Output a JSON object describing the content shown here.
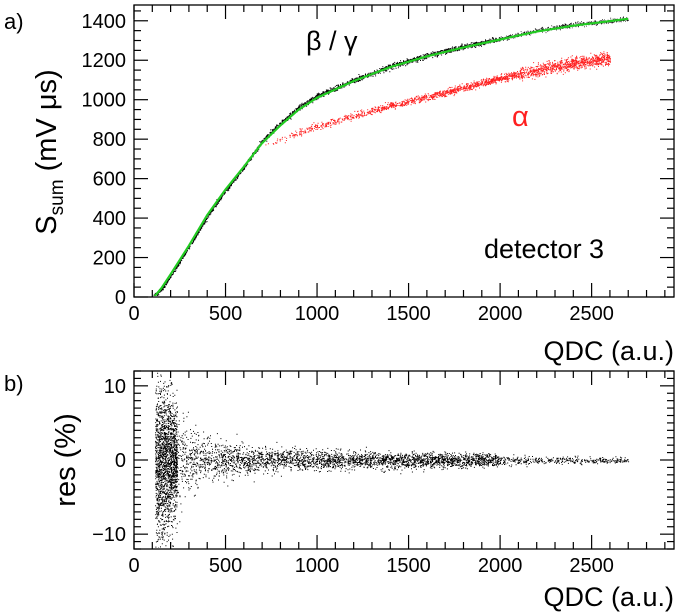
{
  "chart_data": [
    {
      "panel_label": "a)",
      "type": "scatter",
      "xlabel": "QDC (a.u.)",
      "ylabel_main": "S",
      "ylabel_sub": "sum",
      "ylabel_rest": " (mV μs)",
      "xlim": [
        0,
        2950
      ],
      "ylim": [
        0,
        1480
      ],
      "xticks": [
        0,
        500,
        1000,
        1500,
        2000,
        2500
      ],
      "yticks": [
        0,
        200,
        400,
        600,
        800,
        1000,
        1200,
        1400
      ],
      "annotations": {
        "detector": "detector 3"
      },
      "grid": false,
      "series": [
        {
          "name": "β / γ",
          "color": "#000000",
          "kind": "scatter-band",
          "x": [
            100,
            150,
            200,
            300,
            400,
            500,
            600,
            700,
            800,
            900,
            1000,
            1200,
            1400,
            1600,
            1800,
            2000,
            2200,
            2400,
            2700
          ],
          "y": [
            0,
            40,
            110,
            255,
            410,
            540,
            660,
            790,
            880,
            960,
            1020,
            1100,
            1170,
            1225,
            1270,
            1310,
            1350,
            1380,
            1410
          ]
        },
        {
          "name": "α",
          "color": "#ff2020",
          "kind": "scatter-band",
          "x": [
            700,
            800,
            1000,
            1200,
            1400,
            1600,
            1800,
            2000,
            2200,
            2400,
            2600
          ],
          "y": [
            760,
            800,
            865,
            920,
            970,
            1015,
            1060,
            1110,
            1150,
            1185,
            1210
          ]
        },
        {
          "name": "",
          "color": "#22cc22",
          "kind": "fit-line",
          "x": [
            110,
            150,
            200,
            300,
            400,
            500,
            600,
            700,
            800,
            900,
            1000,
            1200,
            1400,
            1600,
            1800,
            2000,
            2200,
            2400,
            2700
          ],
          "y": [
            0,
            45,
            115,
            260,
            415,
            545,
            660,
            780,
            870,
            950,
            1010,
            1095,
            1165,
            1220,
            1265,
            1305,
            1345,
            1375,
            1410
          ]
        }
      ]
    },
    {
      "panel_label": "b)",
      "type": "scatter",
      "xlabel": "QDC (a.u.)",
      "ylabel": "res (%)",
      "xlim": [
        0,
        2950
      ],
      "ylim": [
        -12,
        12
      ],
      "xticks": [
        0,
        500,
        1000,
        1500,
        2000,
        2500
      ],
      "yticks": [
        -10,
        0,
        10
      ],
      "ytick_labels": [
        "−10",
        "0",
        "10"
      ],
      "grid": false,
      "series": [
        {
          "name": "",
          "color": "#000000",
          "kind": "residual-band",
          "x": [
            120,
            150,
            200,
            300,
            400,
            500,
            600,
            800,
            1000,
            1300,
            1600,
            1900,
            2000,
            2300,
            2700
          ],
          "spread": [
            12,
            12,
            9,
            5,
            3.5,
            2.5,
            2,
            1.6,
            1.4,
            1.3,
            1.1,
            1.0,
            0.8,
            0.5,
            0.4
          ]
        }
      ]
    }
  ]
}
